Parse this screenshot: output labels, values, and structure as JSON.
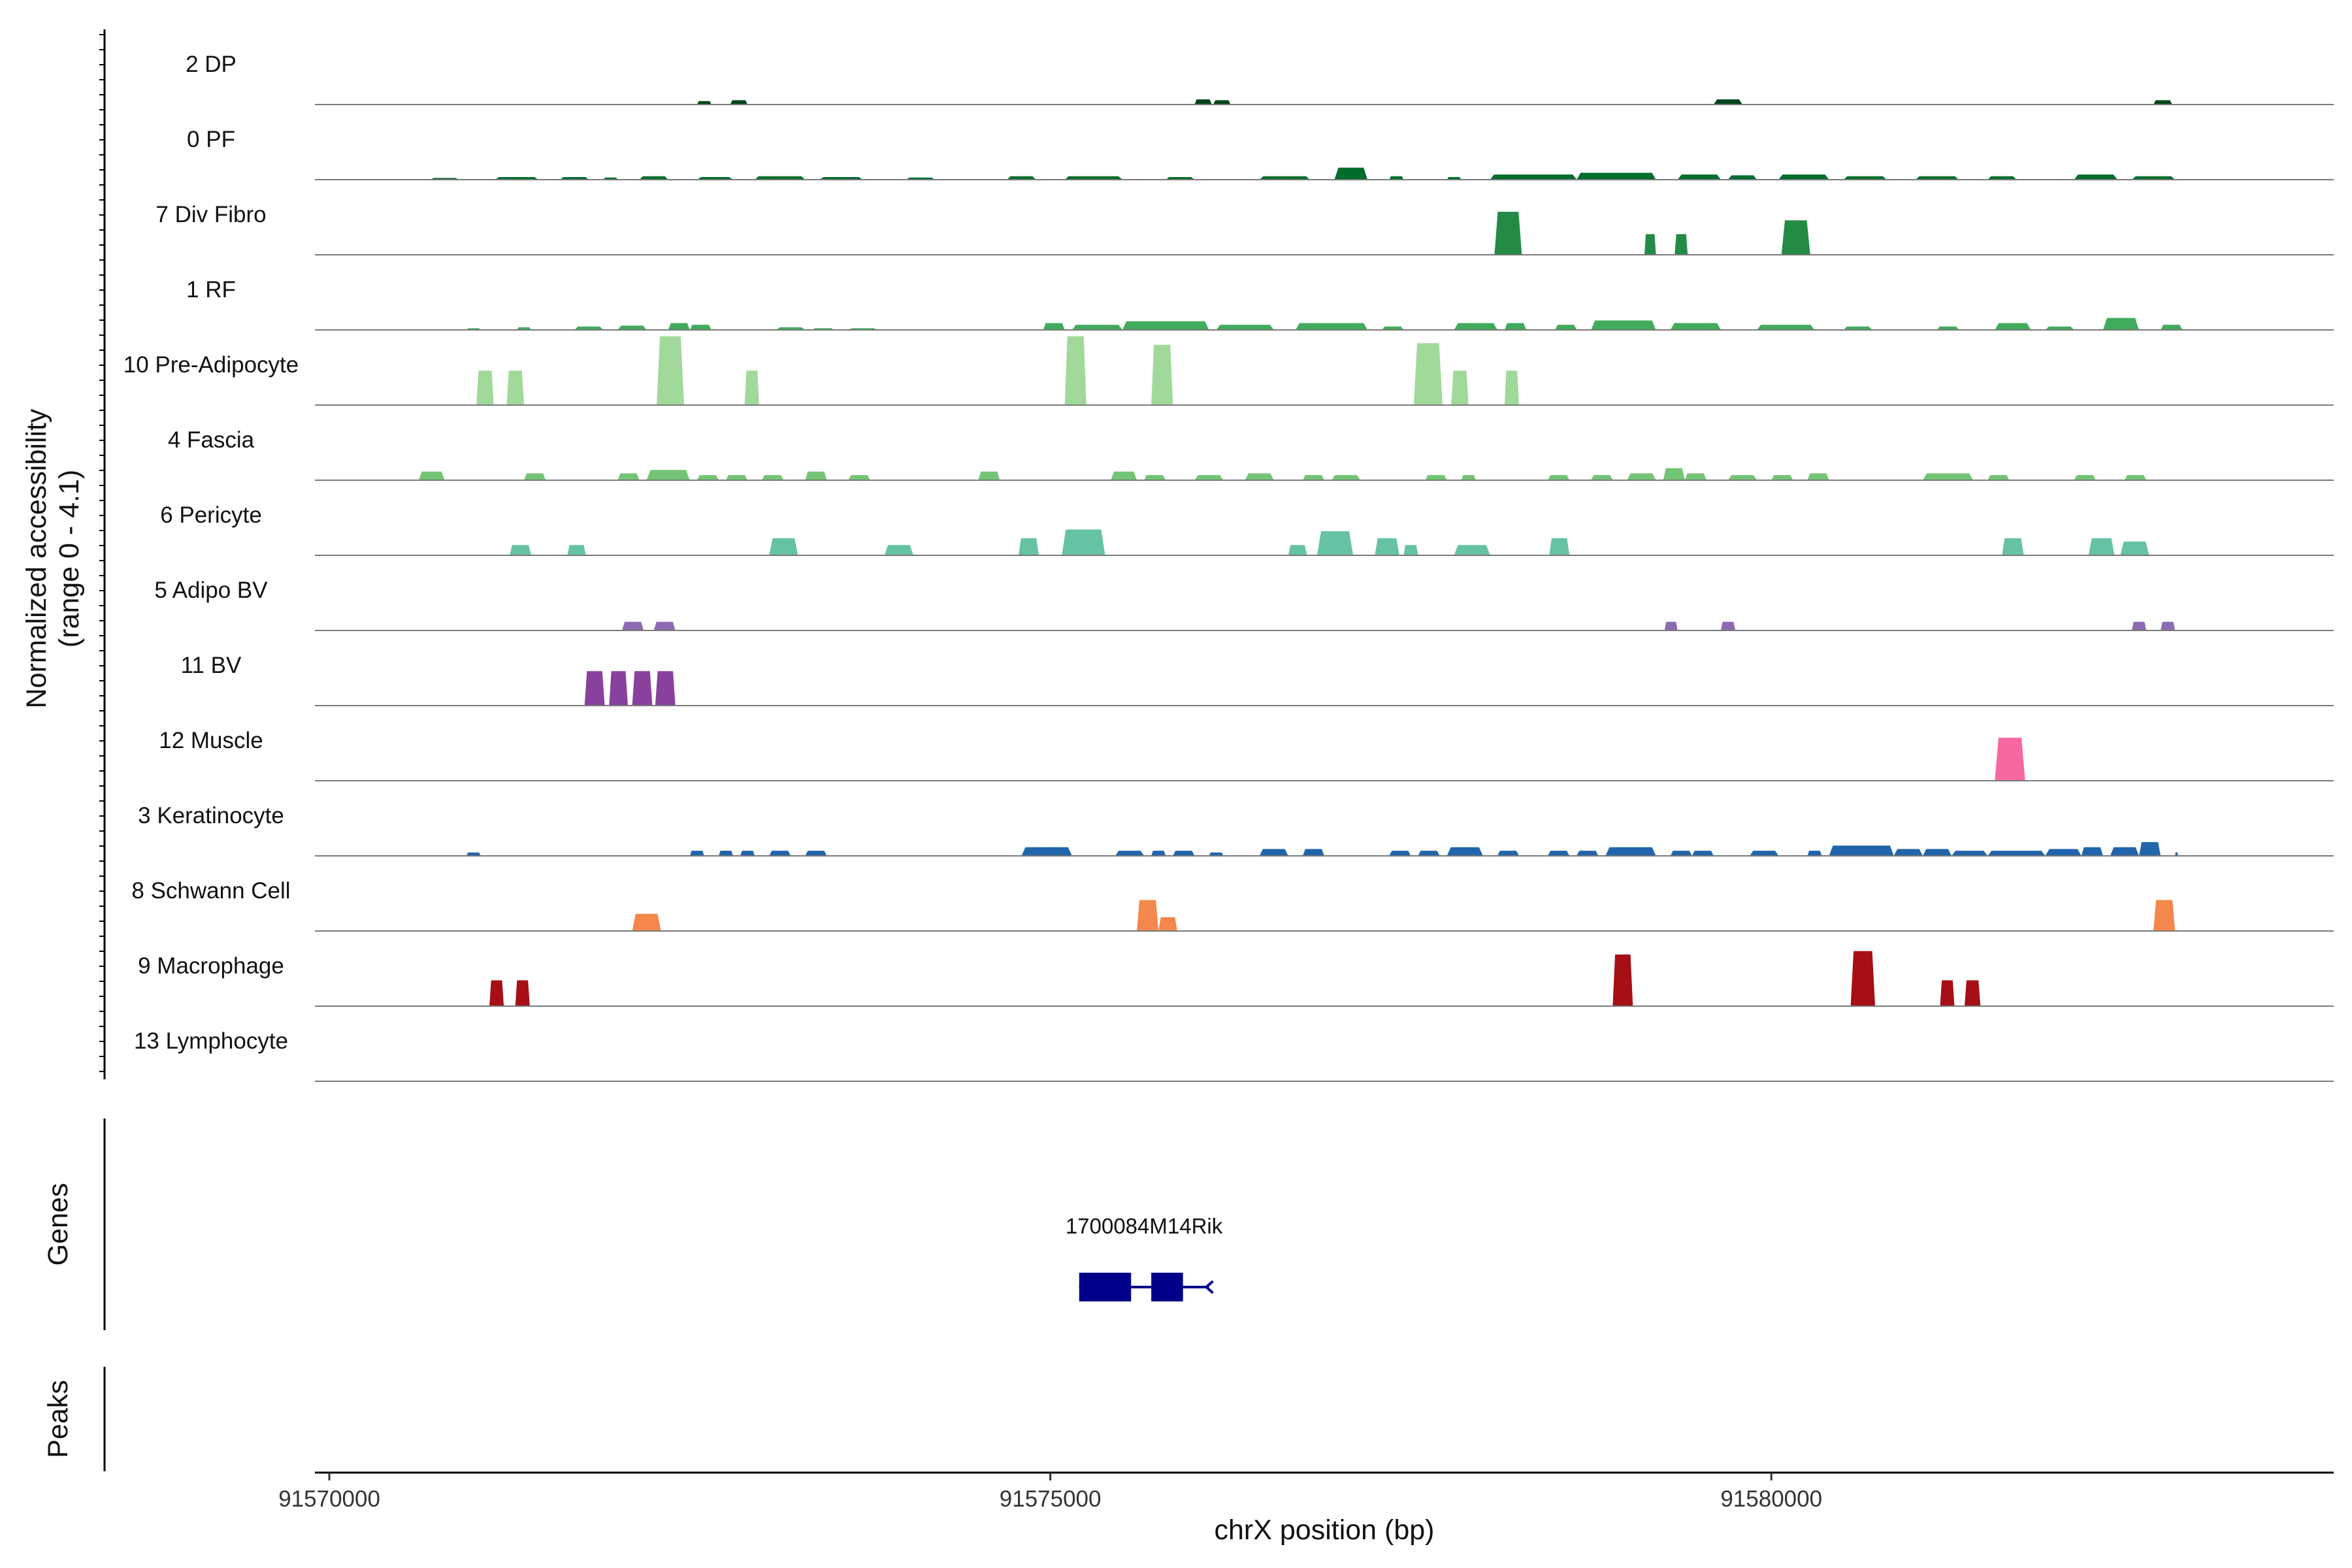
{
  "chart_data": {
    "type": "area",
    "title": "",
    "xlabel": "chrX position (bp)",
    "xlim": [
      91569900,
      91583900
    ],
    "x_ticks": [
      91570000,
      91575000,
      91580000
    ],
    "x_tick_labels": [
      "91570000",
      "91575000",
      "91580000"
    ],
    "ylabel_lines": [
      "Normalized accessibility",
      "(range 0 - 4.1)"
    ],
    "ylim": [
      0,
      4.1
    ],
    "grid": false,
    "legend": "none",
    "series": [
      {
        "name": "2 DP",
        "color": "#00441b",
        "peaks": [
          [
            91572550,
            91572650,
            0.2
          ],
          [
            91572780,
            91572900,
            0.25
          ],
          [
            91576000,
            91576120,
            0.3
          ],
          [
            91576130,
            91576250,
            0.25
          ],
          [
            91579600,
            91579800,
            0.3
          ],
          [
            91582650,
            91582780,
            0.25
          ]
        ]
      },
      {
        "name": "0 PF",
        "color": "#006d2c",
        "peaks": [
          [
            91570700,
            91570900,
            0.1
          ],
          [
            91571150,
            91571450,
            0.15
          ],
          [
            91571600,
            91571800,
            0.15
          ],
          [
            91571900,
            91572000,
            0.12
          ],
          [
            91572150,
            91572350,
            0.2
          ],
          [
            91572550,
            91572800,
            0.15
          ],
          [
            91572950,
            91573300,
            0.2
          ],
          [
            91573400,
            91573700,
            0.15
          ],
          [
            91574000,
            91574200,
            0.12
          ],
          [
            91574700,
            91574900,
            0.2
          ],
          [
            91575100,
            91575500,
            0.2
          ],
          [
            91575800,
            91576000,
            0.15
          ],
          [
            91576450,
            91576800,
            0.2
          ],
          [
            91576970,
            91577200,
            0.7
          ],
          [
            91577350,
            91577450,
            0.2
          ],
          [
            91577750,
            91577850,
            0.15
          ],
          [
            91578050,
            91578650,
            0.3
          ],
          [
            91578650,
            91579200,
            0.4
          ],
          [
            91579350,
            91579650,
            0.3
          ],
          [
            91579700,
            91579900,
            0.25
          ],
          [
            91580050,
            91580400,
            0.3
          ],
          [
            91580500,
            91580800,
            0.2
          ],
          [
            91581000,
            91581300,
            0.2
          ],
          [
            91581500,
            91581700,
            0.2
          ],
          [
            91582100,
            91582400,
            0.3
          ],
          [
            91582500,
            91582800,
            0.2
          ]
        ]
      },
      {
        "name": "7 Div Fibro",
        "color": "#238b45",
        "peaks": [
          [
            91578080,
            91578270,
            2.5
          ],
          [
            91579120,
            91579200,
            1.2
          ],
          [
            91579330,
            91579420,
            1.2
          ],
          [
            91580070,
            91580270,
            2.0
          ]
        ]
      },
      {
        "name": "1 RF",
        "color": "#41ab5d",
        "peaks": [
          [
            91570950,
            91571050,
            0.1
          ],
          [
            91571300,
            91571400,
            0.15
          ],
          [
            91571700,
            91571900,
            0.2
          ],
          [
            91572000,
            91572200,
            0.25
          ],
          [
            91572350,
            91572500,
            0.4
          ],
          [
            91572500,
            91572650,
            0.3
          ],
          [
            91573100,
            91573300,
            0.15
          ],
          [
            91573350,
            91573500,
            0.1
          ],
          [
            91573600,
            91573800,
            0.1
          ],
          [
            91574950,
            91575100,
            0.4
          ],
          [
            91575150,
            91575500,
            0.3
          ],
          [
            91575500,
            91576100,
            0.5
          ],
          [
            91576150,
            91576550,
            0.3
          ],
          [
            91576700,
            91577200,
            0.4
          ],
          [
            91577300,
            91577450,
            0.2
          ],
          [
            91577800,
            91578100,
            0.4
          ],
          [
            91578150,
            91578300,
            0.4
          ],
          [
            91578500,
            91578650,
            0.3
          ],
          [
            91578750,
            91579200,
            0.55
          ],
          [
            91579300,
            91579650,
            0.4
          ],
          [
            91579900,
            91580300,
            0.3
          ],
          [
            91580500,
            91580700,
            0.2
          ],
          [
            91581150,
            91581300,
            0.2
          ],
          [
            91581550,
            91581800,
            0.4
          ],
          [
            91581900,
            91582100,
            0.2
          ],
          [
            91582300,
            91582550,
            0.7
          ],
          [
            91582700,
            91582850,
            0.3
          ]
        ]
      },
      {
        "name": "10 Pre-Adipocyte",
        "color": "#a1d99b",
        "peaks": [
          [
            91571020,
            91571140,
            2.0
          ],
          [
            91571230,
            91571350,
            2.0
          ],
          [
            91572270,
            91572460,
            4.0
          ],
          [
            91572880,
            91572980,
            2.0
          ],
          [
            91575100,
            91575250,
            4.0
          ],
          [
            91575700,
            91575850,
            3.5
          ],
          [
            91577520,
            91577720,
            3.6
          ],
          [
            91577780,
            91577900,
            2.0
          ],
          [
            91578150,
            91578250,
            2.0
          ]
        ]
      },
      {
        "name": "4 Fascia",
        "color": "#74c476",
        "peaks": [
          [
            91570620,
            91570800,
            0.5
          ],
          [
            91571350,
            91571500,
            0.4
          ],
          [
            91572000,
            91572150,
            0.4
          ],
          [
            91572200,
            91572500,
            0.6
          ],
          [
            91572550,
            91572700,
            0.3
          ],
          [
            91572750,
            91572900,
            0.3
          ],
          [
            91573000,
            91573150,
            0.3
          ],
          [
            91573300,
            91573450,
            0.5
          ],
          [
            91573600,
            91573750,
            0.3
          ],
          [
            91574500,
            91574650,
            0.5
          ],
          [
            91575420,
            91575600,
            0.5
          ],
          [
            91575650,
            91575800,
            0.3
          ],
          [
            91576000,
            91576200,
            0.3
          ],
          [
            91576350,
            91576550,
            0.4
          ],
          [
            91576750,
            91576900,
            0.3
          ],
          [
            91576950,
            91577150,
            0.3
          ],
          [
            91577600,
            91577750,
            0.3
          ],
          [
            91577850,
            91577950,
            0.3
          ],
          [
            91578450,
            91578600,
            0.3
          ],
          [
            91578750,
            91578900,
            0.3
          ],
          [
            91579000,
            91579200,
            0.4
          ],
          [
            91579250,
            91579400,
            0.7
          ],
          [
            91579400,
            91579550,
            0.4
          ],
          [
            91579700,
            91579900,
            0.3
          ],
          [
            91580000,
            91580150,
            0.3
          ],
          [
            91580250,
            91580400,
            0.4
          ],
          [
            91581050,
            91581400,
            0.4
          ],
          [
            91581500,
            91581650,
            0.3
          ],
          [
            91582100,
            91582250,
            0.3
          ],
          [
            91582450,
            91582600,
            0.3
          ]
        ]
      },
      {
        "name": "6 Pericyte",
        "color": "#66c2a4",
        "peaks": [
          [
            91571250,
            91571400,
            0.6
          ],
          [
            91571650,
            91571780,
            0.6
          ],
          [
            91573050,
            91573250,
            1.0
          ],
          [
            91573850,
            91574050,
            0.6
          ],
          [
            91574780,
            91574920,
            1.0
          ],
          [
            91575080,
            91575380,
            1.5
          ],
          [
            91576650,
            91576780,
            0.6
          ],
          [
            91576850,
            91577100,
            1.4
          ],
          [
            91577250,
            91577420,
            1.0
          ],
          [
            91577450,
            91577550,
            0.6
          ],
          [
            91577800,
            91578050,
            0.6
          ],
          [
            91578460,
            91578600,
            1.0
          ],
          [
            91581600,
            91581750,
            1.0
          ],
          [
            91582200,
            91582380,
            1.0
          ],
          [
            91582420,
            91582620,
            0.8
          ]
        ]
      },
      {
        "name": "5 Adipo BV",
        "color": "#8c6bb1",
        "peaks": [
          [
            91572030,
            91572180,
            0.5
          ],
          [
            91572250,
            91572400,
            0.5
          ],
          [
            91579260,
            91579350,
            0.5
          ],
          [
            91579650,
            91579750,
            0.5
          ],
          [
            91582500,
            91582600,
            0.5
          ],
          [
            91582700,
            91582800,
            0.5
          ]
        ]
      },
      {
        "name": "11 BV",
        "color": "#88419d",
        "peaks": [
          [
            91571770,
            91571910,
            2.0
          ],
          [
            91571940,
            91572070,
            2.0
          ],
          [
            91572100,
            91572240,
            2.0
          ],
          [
            91572260,
            91572400,
            2.0
          ]
        ]
      },
      {
        "name": "12 Muscle",
        "color": "#f768a1",
        "peaks": [
          [
            91581550,
            91581760,
            2.5
          ]
        ]
      },
      {
        "name": "3 Keratinocyte",
        "color": "#2166ac",
        "peaks": [
          [
            91570950,
            91571050,
            0.2
          ],
          [
            91572500,
            91572600,
            0.3
          ],
          [
            91572700,
            91572800,
            0.3
          ],
          [
            91572850,
            91572950,
            0.3
          ],
          [
            91573050,
            91573200,
            0.3
          ],
          [
            91573300,
            91573450,
            0.3
          ],
          [
            91574800,
            91575150,
            0.5
          ],
          [
            91575450,
            91575650,
            0.3
          ],
          [
            91575700,
            91575800,
            0.3
          ],
          [
            91575850,
            91576000,
            0.3
          ],
          [
            91576100,
            91576200,
            0.2
          ],
          [
            91576450,
            91576650,
            0.4
          ],
          [
            91576750,
            91576900,
            0.4
          ],
          [
            91577350,
            91577500,
            0.3
          ],
          [
            91577550,
            91577700,
            0.3
          ],
          [
            91577750,
            91578000,
            0.5
          ],
          [
            91578100,
            91578250,
            0.3
          ],
          [
            91578450,
            91578600,
            0.3
          ],
          [
            91578650,
            91578800,
            0.3
          ],
          [
            91578850,
            91579200,
            0.5
          ],
          [
            91579300,
            91579450,
            0.3
          ],
          [
            91579450,
            91579600,
            0.3
          ],
          [
            91579850,
            91580050,
            0.3
          ],
          [
            91580250,
            91580350,
            0.3
          ],
          [
            91580400,
            91580850,
            0.6
          ],
          [
            91580850,
            91581050,
            0.4
          ],
          [
            91581050,
            91581250,
            0.4
          ],
          [
            91581250,
            91581500,
            0.3
          ],
          [
            91581500,
            91581900,
            0.3
          ],
          [
            91581900,
            91582150,
            0.4
          ],
          [
            91582150,
            91582300,
            0.5
          ],
          [
            91582350,
            91582550,
            0.5
          ],
          [
            91582550,
            91582700,
            0.8
          ],
          [
            91582800,
            91582820,
            0.2
          ]
        ]
      },
      {
        "name": "8 Schwann Cell",
        "color": "#f4874b",
        "peaks": [
          [
            91572100,
            91572300,
            1.0
          ],
          [
            91575600,
            91575750,
            1.8
          ],
          [
            91575750,
            91575880,
            0.8
          ],
          [
            91582650,
            91582800,
            1.8
          ]
        ]
      },
      {
        "name": "9 Macrophage",
        "color": "#a50f15",
        "peaks": [
          [
            91571110,
            91571210,
            1.5
          ],
          [
            91571290,
            91571390,
            1.5
          ],
          [
            91578900,
            91579040,
            3.0
          ],
          [
            91580550,
            91580720,
            3.2
          ],
          [
            91581170,
            91581270,
            1.5
          ],
          [
            91581340,
            91581450,
            1.5
          ]
        ]
      },
      {
        "name": "13 Lymphocyte",
        "color": "#7f7f7f",
        "peaks": []
      }
    ],
    "genes": [
      {
        "name": "1700084M14Rik",
        "color": "#00008b",
        "start": 91575200,
        "end": 91576100,
        "exons": [
          [
            91575200,
            91575560
          ],
          [
            91575700,
            91575920
          ]
        ],
        "strand": "-"
      }
    ],
    "panels": [
      "Genes",
      "Peaks"
    ]
  }
}
